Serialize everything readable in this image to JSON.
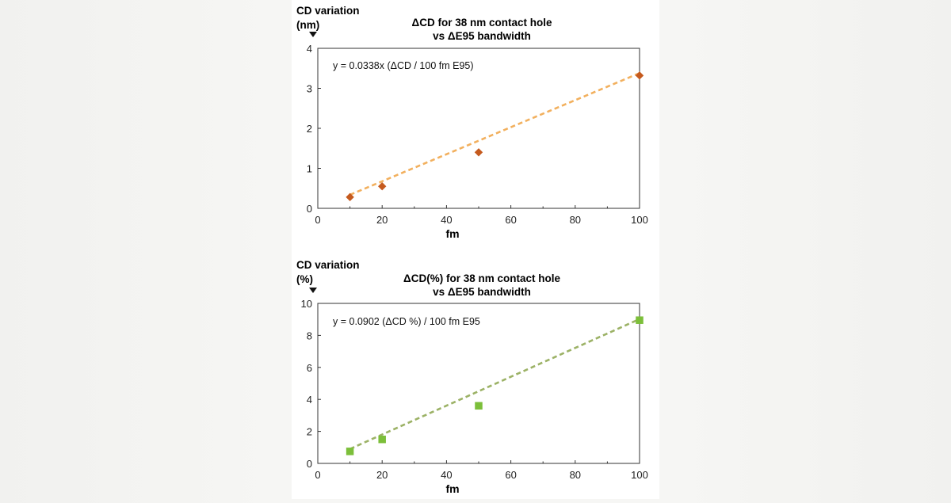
{
  "chart_data": [
    {
      "type": "scatter",
      "title": "ΔCD for 38 nm contact hole",
      "subtitle": "vs ΔE95 bandwidth",
      "ylabel": "CD variation",
      "ylabel_unit": "(nm)",
      "xlabel": "fm",
      "xlim": [
        0,
        100
      ],
      "ylim": [
        0,
        4
      ],
      "xticks": [
        "0",
        "20",
        "40",
        "60",
        "80",
        "100"
      ],
      "yticks": [
        "0",
        "1",
        "2",
        "3",
        "4"
      ],
      "grid": false,
      "annotation": "y = 0.0338x (ΔCD / 100 fm E95)",
      "trendline": {
        "slope": 0.0338,
        "intercept": 0,
        "style": "dashed",
        "color": "#f2b05e"
      },
      "marker": "diamond",
      "marker_color": "#c55a1e",
      "x": [
        10,
        20,
        50,
        100
      ],
      "y": [
        0.28,
        0.55,
        1.4,
        3.32
      ]
    },
    {
      "type": "scatter",
      "title": "ΔCD(%) for 38 nm contact hole",
      "subtitle": "vs ΔE95 bandwidth",
      "ylabel": "CD variation",
      "ylabel_unit": "(%)",
      "xlabel": "fm",
      "xlim": [
        0,
        100
      ],
      "ylim": [
        0,
        10
      ],
      "xticks": [
        "0",
        "20",
        "40",
        "60",
        "80",
        "100"
      ],
      "yticks": [
        "0",
        "2",
        "4",
        "6",
        "8",
        "10"
      ],
      "grid": false,
      "annotation": "y = 0.0902 (ΔCD %) / 100 fm E95",
      "trendline": {
        "slope": 0.0902,
        "intercept": 0,
        "style": "dashed",
        "color": "#9cb266"
      },
      "marker": "square",
      "marker_color": "#7cbf3a",
      "x": [
        10,
        20,
        50,
        100
      ],
      "y": [
        0.75,
        1.5,
        3.6,
        8.95
      ]
    }
  ]
}
